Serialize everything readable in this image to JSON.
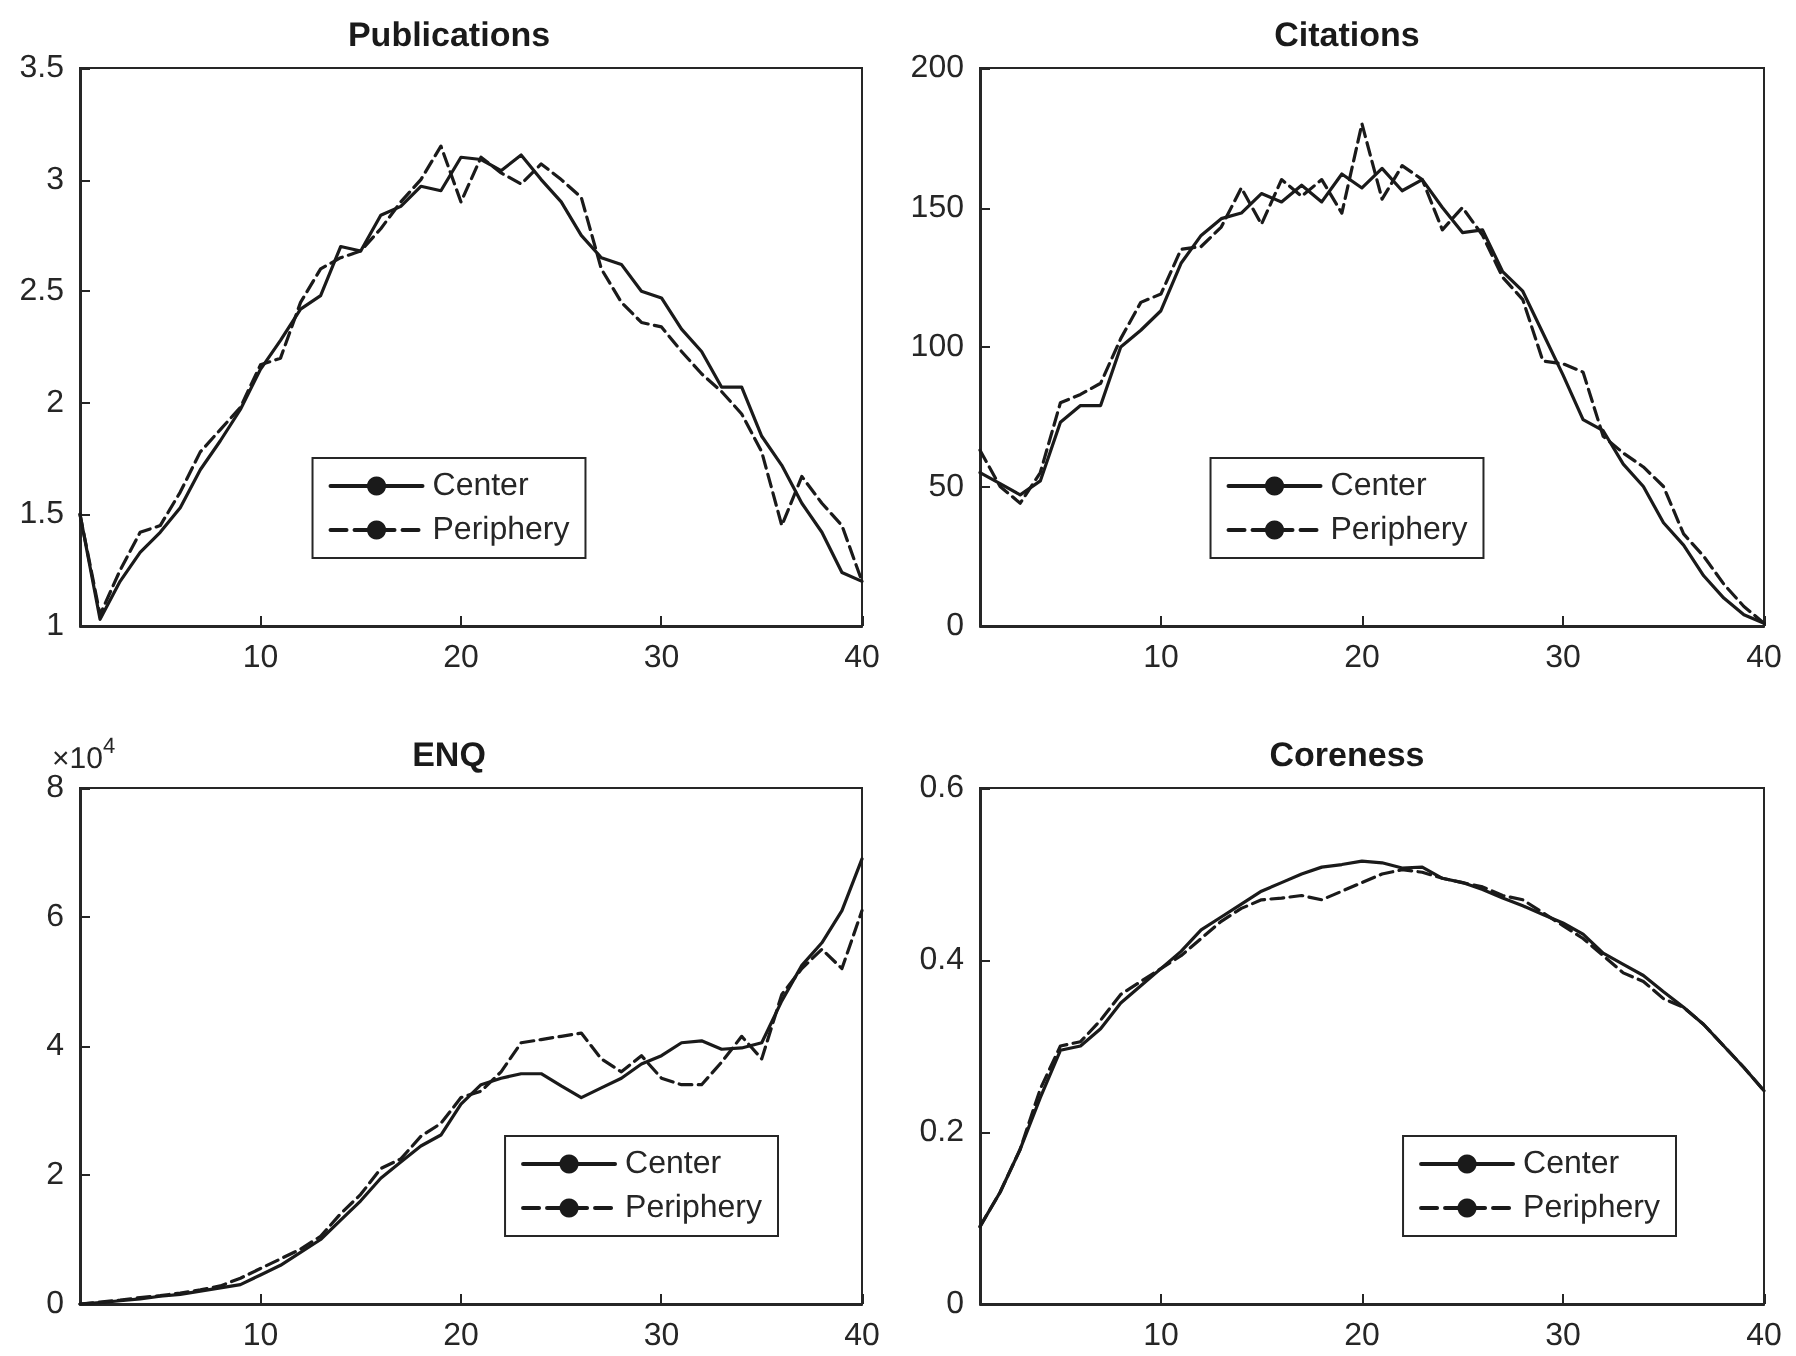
{
  "chart_data": [
    {
      "type": "line",
      "title": "Publications",
      "x": [
        1,
        2,
        3,
        4,
        5,
        6,
        7,
        8,
        9,
        10,
        11,
        12,
        13,
        14,
        15,
        16,
        17,
        18,
        19,
        20,
        21,
        22,
        23,
        24,
        25,
        26,
        27,
        28,
        29,
        30,
        31,
        32,
        33,
        34,
        35,
        36,
        37,
        38,
        39,
        40
      ],
      "xlim": [
        1,
        40
      ],
      "xticks": [
        10,
        20,
        30,
        40
      ],
      "ylim": [
        1,
        3.5
      ],
      "yticks": [
        1,
        1.5,
        2,
        2.5,
        3,
        3.5
      ],
      "grid": false,
      "legend": "bottom",
      "series": [
        {
          "name": "Center",
          "color": "#1a1a1a",
          "line_style": "solid",
          "values": [
            1.5,
            1.03,
            1.2,
            1.33,
            1.42,
            1.53,
            1.7,
            1.83,
            1.97,
            2.15,
            2.28,
            2.42,
            2.48,
            2.7,
            2.68,
            2.84,
            2.88,
            2.97,
            2.95,
            3.1,
            3.09,
            3.04,
            3.11,
            3.0,
            2.9,
            2.75,
            2.65,
            2.62,
            2.5,
            2.47,
            2.33,
            2.23,
            2.07,
            2.07,
            1.85,
            1.72,
            1.55,
            1.42,
            1.24,
            1.2
          ]
        },
        {
          "name": "Periphery",
          "color": "#1a1a1a",
          "line_style": "dashed",
          "values": [
            1.5,
            1.05,
            1.25,
            1.42,
            1.45,
            1.6,
            1.78,
            1.88,
            1.98,
            2.17,
            2.2,
            2.45,
            2.6,
            2.65,
            2.68,
            2.78,
            2.9,
            3.0,
            3.15,
            2.9,
            3.1,
            3.03,
            2.98,
            3.07,
            3.0,
            2.92,
            2.6,
            2.45,
            2.36,
            2.34,
            2.23,
            2.13,
            2.05,
            1.95,
            1.78,
            1.45,
            1.67,
            1.55,
            1.45,
            1.2
          ]
        }
      ]
    },
    {
      "type": "line",
      "title": "Citations",
      "x": [
        1,
        2,
        3,
        4,
        5,
        6,
        7,
        8,
        9,
        10,
        11,
        12,
        13,
        14,
        15,
        16,
        17,
        18,
        19,
        20,
        21,
        22,
        23,
        24,
        25,
        26,
        27,
        28,
        29,
        30,
        31,
        32,
        33,
        34,
        35,
        36,
        37,
        38,
        39,
        40
      ],
      "xlim": [
        1,
        40
      ],
      "xticks": [
        10,
        20,
        30,
        40
      ],
      "ylim": [
        0,
        200
      ],
      "yticks": [
        0,
        50,
        100,
        150,
        200
      ],
      "grid": false,
      "legend": "bottom",
      "series": [
        {
          "name": "Center",
          "color": "#1a1a1a",
          "line_style": "solid",
          "values": [
            55,
            51,
            47,
            52,
            73,
            79,
            79,
            100,
            106,
            113,
            130,
            140,
            146,
            148,
            155,
            152,
            158,
            152,
            162,
            157,
            164,
            156,
            160,
            150,
            141,
            142,
            127,
            120,
            105,
            90,
            74,
            70,
            58,
            50,
            37,
            29,
            18,
            10,
            4,
            1
          ]
        },
        {
          "name": "Periphery",
          "color": "#1a1a1a",
          "line_style": "dashed",
          "values": [
            63,
            50,
            44,
            55,
            80,
            83,
            87,
            103,
            116,
            119,
            135,
            136,
            143,
            157,
            144,
            160,
            154,
            160,
            148,
            180,
            153,
            165,
            160,
            142,
            150,
            140,
            125,
            117,
            95,
            94,
            91,
            68,
            62,
            57,
            50,
            33,
            25,
            15,
            7,
            1
          ]
        }
      ]
    },
    {
      "type": "line",
      "title": "ENQ",
      "annotations": [
        "×10$^{4}$"
      ],
      "x": [
        1,
        2,
        3,
        4,
        5,
        6,
        7,
        8,
        9,
        10,
        11,
        12,
        13,
        14,
        15,
        16,
        17,
        18,
        19,
        20,
        21,
        22,
        23,
        24,
        25,
        26,
        27,
        28,
        29,
        30,
        31,
        32,
        33,
        34,
        35,
        36,
        37,
        38,
        39,
        40
      ],
      "xlim": [
        1,
        40
      ],
      "xticks": [
        10,
        20,
        30,
        40
      ],
      "ylim": [
        0,
        8
      ],
      "yticks": [
        0,
        2,
        4,
        6,
        8
      ],
      "grid": false,
      "legend": "bottom right",
      "series": [
        {
          "name": "Center",
          "color": "#1a1a1a",
          "line_style": "solid",
          "values": [
            0,
            0.02,
            0.05,
            0.08,
            0.12,
            0.15,
            0.2,
            0.25,
            0.3,
            0.45,
            0.6,
            0.8,
            1.0,
            1.3,
            1.6,
            1.95,
            2.2,
            2.45,
            2.62,
            3.1,
            3.4,
            3.5,
            3.57,
            3.57,
            3.38,
            3.2,
            3.35,
            3.5,
            3.72,
            3.85,
            4.05,
            4.08,
            3.95,
            3.97,
            4.05,
            4.7,
            5.25,
            5.6,
            6.1,
            6.9
          ]
        },
        {
          "name": "Periphery",
          "color": "#1a1a1a",
          "line_style": "dashed",
          "values": [
            0,
            0.03,
            0.06,
            0.1,
            0.13,
            0.17,
            0.22,
            0.28,
            0.4,
            0.55,
            0.7,
            0.85,
            1.05,
            1.4,
            1.7,
            2.1,
            2.25,
            2.6,
            2.8,
            3.2,
            3.3,
            3.6,
            4.05,
            4.1,
            4.15,
            4.2,
            3.8,
            3.6,
            3.85,
            3.5,
            3.4,
            3.4,
            3.75,
            4.15,
            3.8,
            4.8,
            5.2,
            5.5,
            5.2,
            6.1
          ]
        }
      ]
    },
    {
      "type": "line",
      "title": "Coreness",
      "x": [
        1,
        2,
        3,
        4,
        5,
        6,
        7,
        8,
        9,
        10,
        11,
        12,
        13,
        14,
        15,
        16,
        17,
        18,
        19,
        20,
        21,
        22,
        23,
        24,
        25,
        26,
        27,
        28,
        29,
        30,
        31,
        32,
        33,
        34,
        35,
        36,
        37,
        38,
        39,
        40
      ],
      "xlim": [
        1,
        40
      ],
      "xticks": [
        10,
        20,
        30,
        40
      ],
      "ylim": [
        0,
        0.6
      ],
      "yticks": [
        0,
        0.2,
        0.4,
        0.6
      ],
      "grid": false,
      "legend": "bottom right",
      "series": [
        {
          "name": "Center",
          "color": "#1a1a1a",
          "line_style": "solid",
          "values": [
            0.09,
            0.13,
            0.18,
            0.24,
            0.295,
            0.3,
            0.32,
            0.35,
            0.37,
            0.39,
            0.41,
            0.435,
            0.45,
            0.465,
            0.48,
            0.49,
            0.5,
            0.508,
            0.511,
            0.515,
            0.513,
            0.507,
            0.508,
            0.495,
            0.49,
            0.482,
            0.472,
            0.463,
            0.453,
            0.443,
            0.43,
            0.408,
            0.395,
            0.382,
            0.363,
            0.345,
            0.325,
            0.3,
            0.275,
            0.248
          ]
        },
        {
          "name": "Periphery",
          "color": "#1a1a1a",
          "line_style": "dashed",
          "values": [
            0.09,
            0.13,
            0.18,
            0.25,
            0.3,
            0.305,
            0.33,
            0.36,
            0.375,
            0.39,
            0.405,
            0.425,
            0.445,
            0.46,
            0.47,
            0.472,
            0.475,
            0.47,
            0.48,
            0.49,
            0.5,
            0.505,
            0.502,
            0.495,
            0.49,
            0.485,
            0.475,
            0.47,
            0.455,
            0.44,
            0.425,
            0.405,
            0.385,
            0.375,
            0.355,
            0.345,
            0.325,
            0.3,
            0.275,
            0.248
          ]
        }
      ]
    }
  ]
}
